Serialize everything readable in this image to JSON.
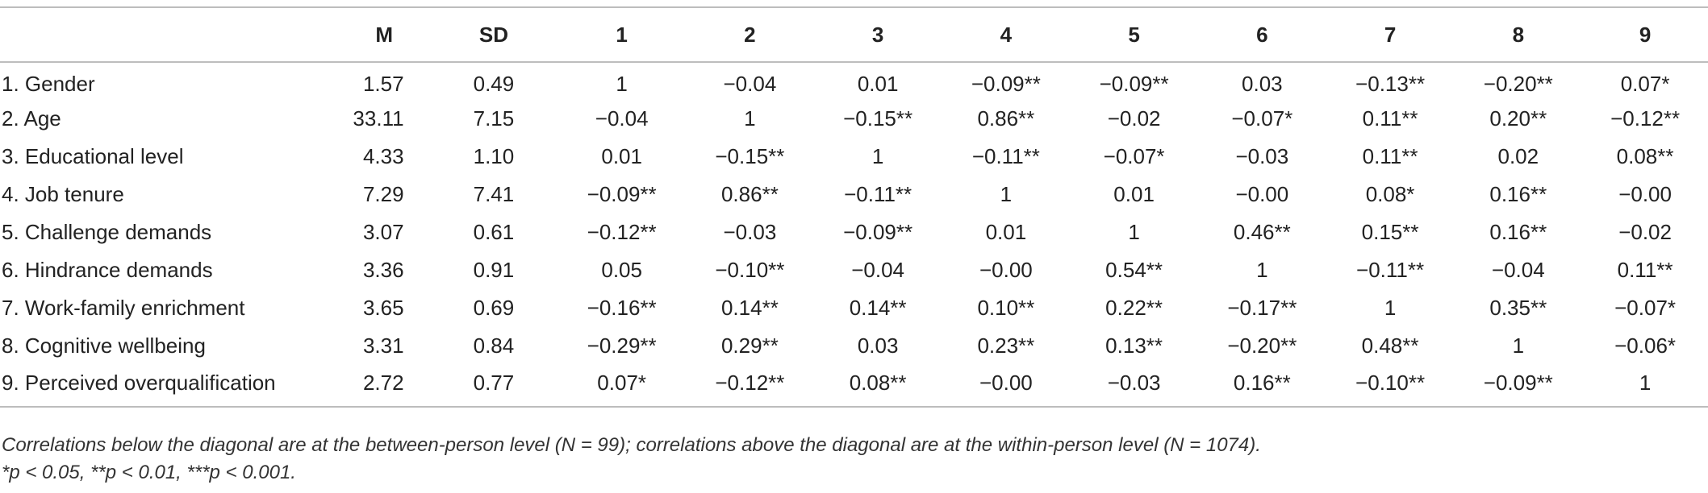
{
  "table": {
    "headers": [
      "",
      "M",
      "SD",
      "1",
      "2",
      "3",
      "4",
      "5",
      "6",
      "7",
      "8",
      "9"
    ],
    "rows": [
      {
        "label": "1. Gender",
        "m": "1.57",
        "sd": "0.49",
        "cells": [
          "1",
          "−0.04",
          "0.01",
          "−0.09**",
          "−0.09**",
          "0.03",
          "−0.13**",
          "−0.20**",
          "0.07*"
        ]
      },
      {
        "label": "2. Age",
        "m": "33.11",
        "sd": "7.15",
        "cells": [
          "−0.04",
          "1",
          "−0.15**",
          "0.86**",
          "−0.02",
          "−0.07*",
          "0.11**",
          "0.20**",
          "−0.12**"
        ]
      },
      {
        "label": "3. Educational level",
        "m": "4.33",
        "sd": "1.10",
        "cells": [
          "0.01",
          "−0.15**",
          "1",
          "−0.11**",
          "−0.07*",
          "−0.03",
          "0.11**",
          "0.02",
          "0.08**"
        ]
      },
      {
        "label": "4. Job tenure",
        "m": "7.29",
        "sd": "7.41",
        "cells": [
          "−0.09**",
          "0.86**",
          "−0.11**",
          "1",
          "0.01",
          "−0.00",
          "0.08*",
          "0.16**",
          "−0.00"
        ]
      },
      {
        "label": "5. Challenge demands",
        "m": "3.07",
        "sd": "0.61",
        "cells": [
          "−0.12**",
          "−0.03",
          "−0.09**",
          "0.01",
          "1",
          "0.46**",
          "0.15**",
          "0.16**",
          "−0.02"
        ]
      },
      {
        "label": "6. Hindrance demands",
        "m": "3.36",
        "sd": "0.91",
        "cells": [
          "0.05",
          "−0.10**",
          "−0.04",
          "−0.00",
          "0.54**",
          "1",
          "−0.11**",
          "−0.04",
          "0.11**"
        ]
      },
      {
        "label": "7. Work-family enrichment",
        "m": "3.65",
        "sd": "0.69",
        "cells": [
          "−0.16**",
          "0.14**",
          "0.14**",
          "0.10**",
          "0.22**",
          "−0.17**",
          "1",
          "0.35**",
          "−0.07*"
        ]
      },
      {
        "label": "8. Cognitive wellbeing",
        "m": "3.31",
        "sd": "0.84",
        "cells": [
          "−0.29**",
          "0.29**",
          "0.03",
          "0.23**",
          "0.13**",
          "−0.20**",
          "0.48**",
          "1",
          "−0.06*"
        ]
      },
      {
        "label": "9. Perceived overqualification",
        "m": "2.72",
        "sd": "0.77",
        "cells": [
          "0.07*",
          "−0.12**",
          "0.08**",
          "−0.00",
          "−0.03",
          "0.16**",
          "−0.10**",
          "−0.09**",
          "1"
        ]
      }
    ]
  },
  "notes": {
    "line1": "Correlations below the diagonal are at the between-person level (N = 99); correlations above the diagonal are at the within-person level (N = 1074).",
    "line2": "*p < 0.05, **p < 0.01, ***p < 0.001."
  }
}
